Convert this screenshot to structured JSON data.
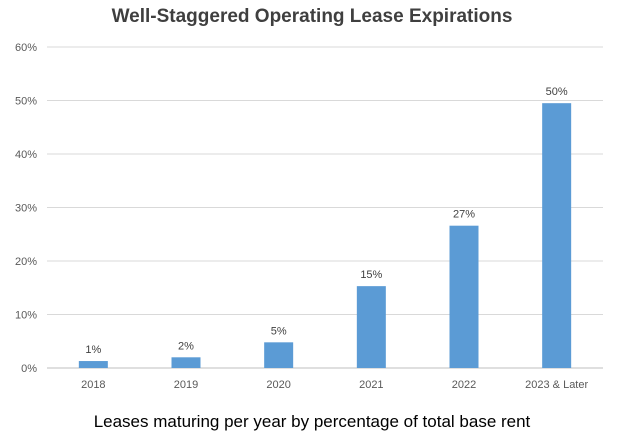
{
  "chart_data": {
    "type": "bar",
    "title": "Well-Staggered Operating Lease Expirations",
    "caption": "Leases maturing per year by percentage of total base rent",
    "categories": [
      "2018",
      "2019",
      "2020",
      "2021",
      "2022",
      "2023 & Later"
    ],
    "values": [
      1.3,
      2.0,
      4.8,
      15.3,
      26.6,
      49.5
    ],
    "data_labels": [
      "1%",
      "2%",
      "5%",
      "15%",
      "27%",
      "50%"
    ],
    "y_ticks": [
      "0%",
      "10%",
      "20%",
      "30%",
      "40%",
      "50%",
      "60%"
    ],
    "ylim": [
      0,
      60
    ],
    "grid": true,
    "legend": "none",
    "bar_color": "#5b9bd5"
  }
}
